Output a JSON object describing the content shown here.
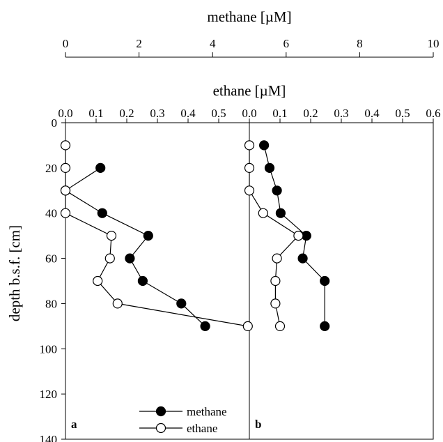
{
  "chart_data": {
    "type": "scatter",
    "top_axis": {
      "title": "methane [µM]",
      "range": [
        0,
        10
      ],
      "ticks": [
        "0",
        "2",
        "4",
        "6",
        "8",
        "10"
      ]
    },
    "bottom_axis": {
      "title": "ethane [µM]",
      "range": [
        0,
        0.6
      ],
      "panel_a_ticks": [
        "0.0",
        "0.1",
        "0.2",
        "0.3",
        "0.4",
        "0.5"
      ],
      "panel_b_ticks": [
        "0.0",
        "0.1",
        "0.2",
        "0.3",
        "0.4",
        "0.5",
        "0.6"
      ]
    },
    "y_axis": {
      "title": "depth b.s.f. [cm]",
      "range": [
        0,
        140
      ],
      "inverted": true,
      "ticks": [
        "0",
        "20",
        "40",
        "60",
        "80",
        "100",
        "120",
        "140"
      ]
    },
    "panels": [
      {
        "label": "a",
        "series": [
          {
            "name": "methane",
            "marker": "filled",
            "axis": "methane",
            "points": [
              [
                1.9,
                20
              ],
              [
                0,
                30
              ],
              [
                2.0,
                40
              ],
              [
                4.5,
                50
              ],
              [
                3.5,
                60
              ],
              [
                4.2,
                70
              ],
              [
                6.3,
                80
              ],
              [
                7.6,
                90
              ]
            ]
          },
          {
            "name": "ethane",
            "marker": "open",
            "axis": "ethane",
            "points": [
              [
                0.0,
                10
              ],
              [
                0.0,
                20
              ],
              [
                0.0,
                30
              ],
              [
                0.0,
                40
              ],
              [
                0.15,
                50
              ],
              [
                0.145,
                60
              ],
              [
                0.105,
                70
              ],
              [
                0.17,
                80
              ],
              [
                0.595,
                90
              ]
            ]
          }
        ]
      },
      {
        "label": "b",
        "series": [
          {
            "name": "methane",
            "marker": "filled",
            "axis": "methane",
            "points": [
              [
                0.8,
                10
              ],
              [
                1.1,
                20
              ],
              [
                1.5,
                30
              ],
              [
                1.7,
                40
              ],
              [
                3.1,
                50
              ],
              [
                2.9,
                60
              ],
              [
                4.1,
                70
              ],
              [
                4.1,
                90
              ]
            ]
          },
          {
            "name": "ethane",
            "marker": "open",
            "axis": "ethane",
            "points": [
              [
                0.0,
                10
              ],
              [
                0.0,
                20
              ],
              [
                0.0,
                30
              ],
              [
                0.045,
                40
              ],
              [
                0.16,
                50
              ],
              [
                0.09,
                60
              ],
              [
                0.085,
                70
              ],
              [
                0.085,
                80
              ],
              [
                0.1,
                90
              ]
            ]
          }
        ]
      }
    ],
    "legend": {
      "placement": "bottom-center",
      "entries": [
        {
          "name": "methane",
          "marker": "filled"
        },
        {
          "name": "ethane",
          "marker": "open"
        }
      ]
    },
    "grid": false
  }
}
